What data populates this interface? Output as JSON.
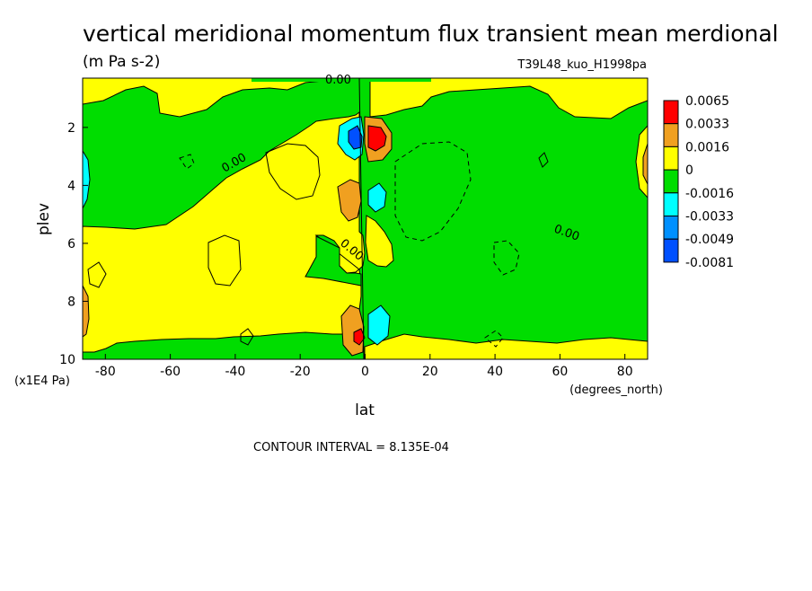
{
  "chart_data": {
    "type": "heatmap",
    "title": "vertical meridional momentum flux transient mean merdional",
    "units": "(m Pa s-2)",
    "run_label": "T39L48_kuo_H1998pa",
    "xlabel": "lat",
    "x_units": "(degrees_north)",
    "ylabel": "plev",
    "y_units": "(x1E4 Pa)",
    "x_ticks": [
      "-80",
      "-60",
      "-40",
      "-20",
      "0",
      "20",
      "40",
      "60",
      "80"
    ],
    "y_ticks": [
      "2",
      "4",
      "6",
      "8",
      "10"
    ],
    "xlim": [
      -87,
      87
    ],
    "ylim": [
      10,
      0.3
    ],
    "contour_interval_text": "CONTOUR INTERVAL = 8.135E-04",
    "contour_labels": [
      "0.00",
      "0.00",
      "0.00",
      "0.00"
    ],
    "colorbar": {
      "labels": [
        "0.0065",
        "0.0033",
        "0.0016",
        "0",
        "-0.0016",
        "-0.0033",
        "-0.0049",
        "-0.0081"
      ],
      "colors": [
        "#ff0000",
        "#f0a020",
        "#ffff00",
        "#00dd00",
        "#00ffff",
        "#0090ff",
        "#0050ff"
      ]
    },
    "features": [
      {
        "sign": "positive",
        "lat": 4,
        "plev": 2.2,
        "level": "max",
        "color": "#ff0000"
      },
      {
        "sign": "negative",
        "lat": -2,
        "plev": 2.2,
        "level": "min",
        "color": "#0050ff"
      },
      {
        "sign": "positive",
        "lat": -4,
        "plev": 4.2,
        "level": "moderate",
        "color": "#f0a020"
      },
      {
        "sign": "negative",
        "lat": 4,
        "plev": 4.2,
        "level": "weak",
        "color": "#00ffff"
      },
      {
        "sign": "positive",
        "lat": -3,
        "plev": 9.2,
        "level": "max",
        "color": "#ff0000"
      },
      {
        "sign": "negative",
        "lat": 5,
        "plev": 8.8,
        "level": "weak",
        "color": "#00ffff"
      },
      {
        "sign": "negative",
        "lat": -85,
        "plev": 3.8,
        "level": "weak",
        "color": "#00ffff"
      },
      {
        "sign": "positive",
        "lat": 86,
        "plev": 3.5,
        "level": "moderate",
        "color": "#f0a020"
      },
      {
        "sign": "positive",
        "lat": -86,
        "plev": 8.5,
        "level": "moderate",
        "color": "#f0a020"
      }
    ]
  }
}
